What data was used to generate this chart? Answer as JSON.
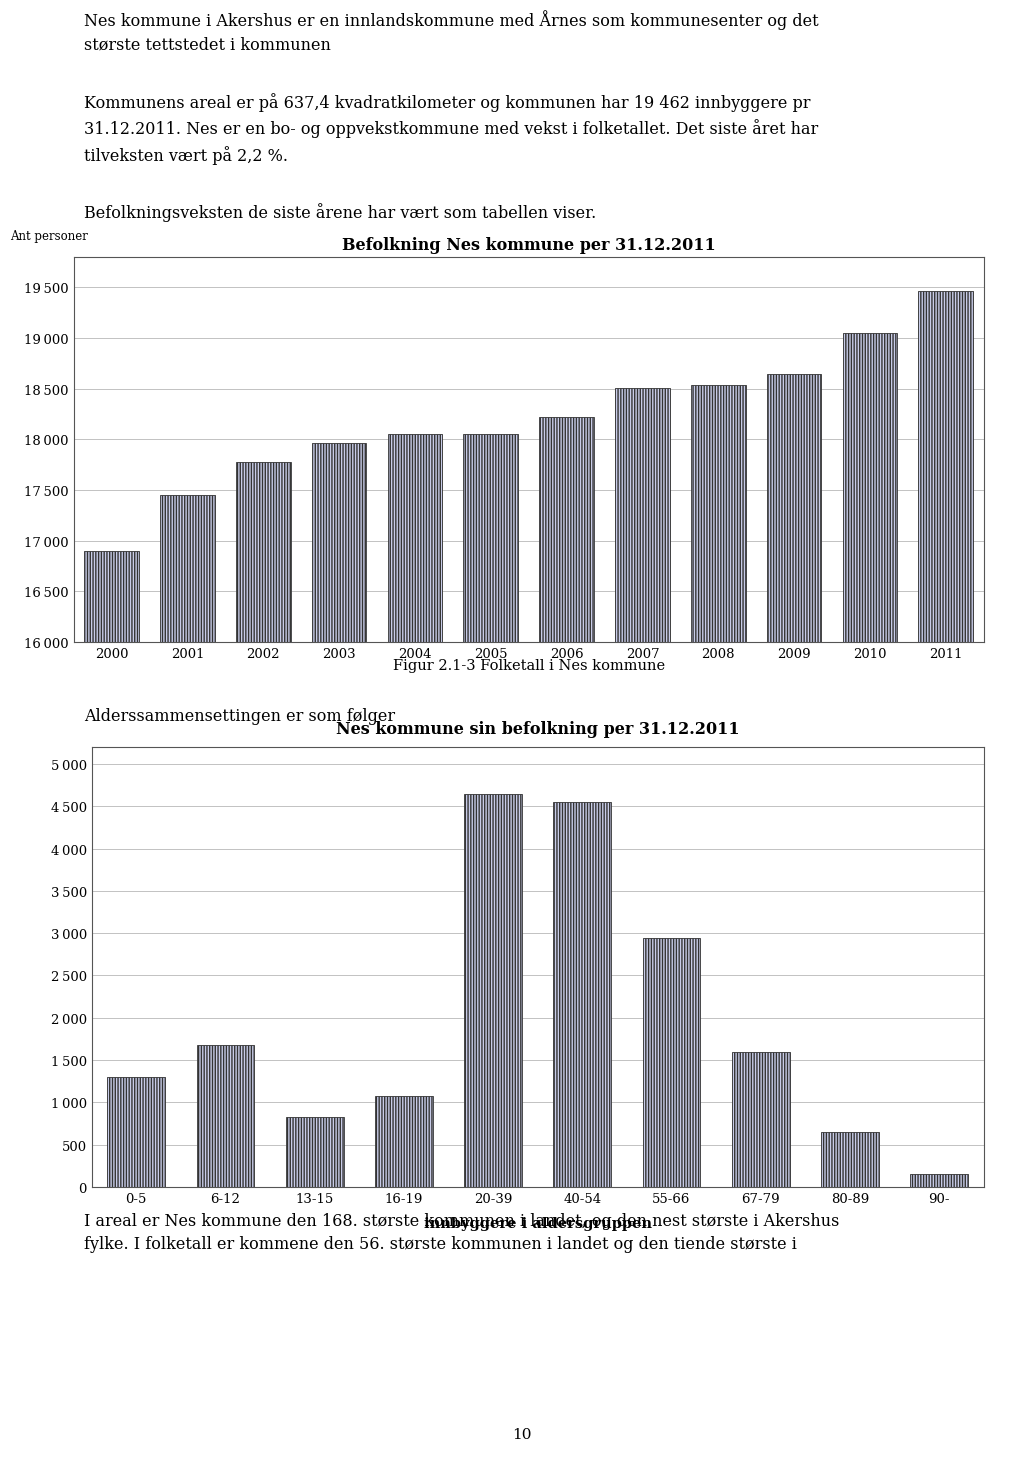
{
  "page_texts": [
    "Nes kommune i Akershus er en innlandskommune med Årnes som kommunesenter og det\nstørste tettstedet i kommunen",
    "Kommunens areal er på 637,4 kvadratkilometer og kommunen har 19 462 innbyggere pr\n31.12.2011. Nes er en bo- og oppvekstkommune med vekst i folketallet. Det siste året har\ntilveksten vært på 2,2 %.",
    "Befolkningsveksten de siste årene har vært som tabellen viser."
  ],
  "chart1": {
    "title": "Befolkning Nes kommune per 31.12.2011",
    "ylabel": "Ant personer",
    "years": [
      2000,
      2001,
      2002,
      2003,
      2004,
      2005,
      2006,
      2007,
      2008,
      2009,
      2010,
      2011
    ],
    "values": [
      16900,
      17450,
      17780,
      17960,
      18050,
      18050,
      18220,
      18510,
      18540,
      18650,
      19050,
      19460
    ],
    "ylim": [
      16000,
      19800
    ],
    "yticks": [
      16000,
      16500,
      17000,
      17500,
      18000,
      18500,
      19000,
      19500
    ],
    "bar_color": "#c8cce8",
    "bar_edgecolor": "#333333",
    "figcaption": "Figur 2.1-3 Folketall i Nes kommune"
  },
  "between_text": "Alderssammensettingen er som følger",
  "chart2": {
    "title": "Nes kommune sin befolkning per 31.12.2011",
    "xlabel": "innbyggere i aldersgruppen",
    "categories": [
      "0-5",
      "6-12",
      "13-15",
      "16-19",
      "20-39",
      "40-54",
      "55-66",
      "67-79",
      "80-89",
      "90-"
    ],
    "values": [
      1300,
      1680,
      830,
      1080,
      4640,
      4550,
      2940,
      1590,
      650,
      150
    ],
    "ylim": [
      0,
      5200
    ],
    "yticks": [
      0,
      500,
      1000,
      1500,
      2000,
      2500,
      3000,
      3500,
      4000,
      4500,
      5000
    ],
    "bar_color": "#c8cce8",
    "bar_edgecolor": "#333333"
  },
  "footer_text": "I areal er Nes kommune den 168. største kommunen i landet, og den nest største i Akershus\nfylke. I folketall er kommene den 56. største kommunen i landet og den tiende største i",
  "page_number": "10",
  "background_color": "#ffffff",
  "font_size_body": 11.5,
  "font_size_chart_title": 11.5,
  "font_size_axis": 9.5,
  "font_size_caption": 10.5,
  "font_size_ylabel": 8.5
}
